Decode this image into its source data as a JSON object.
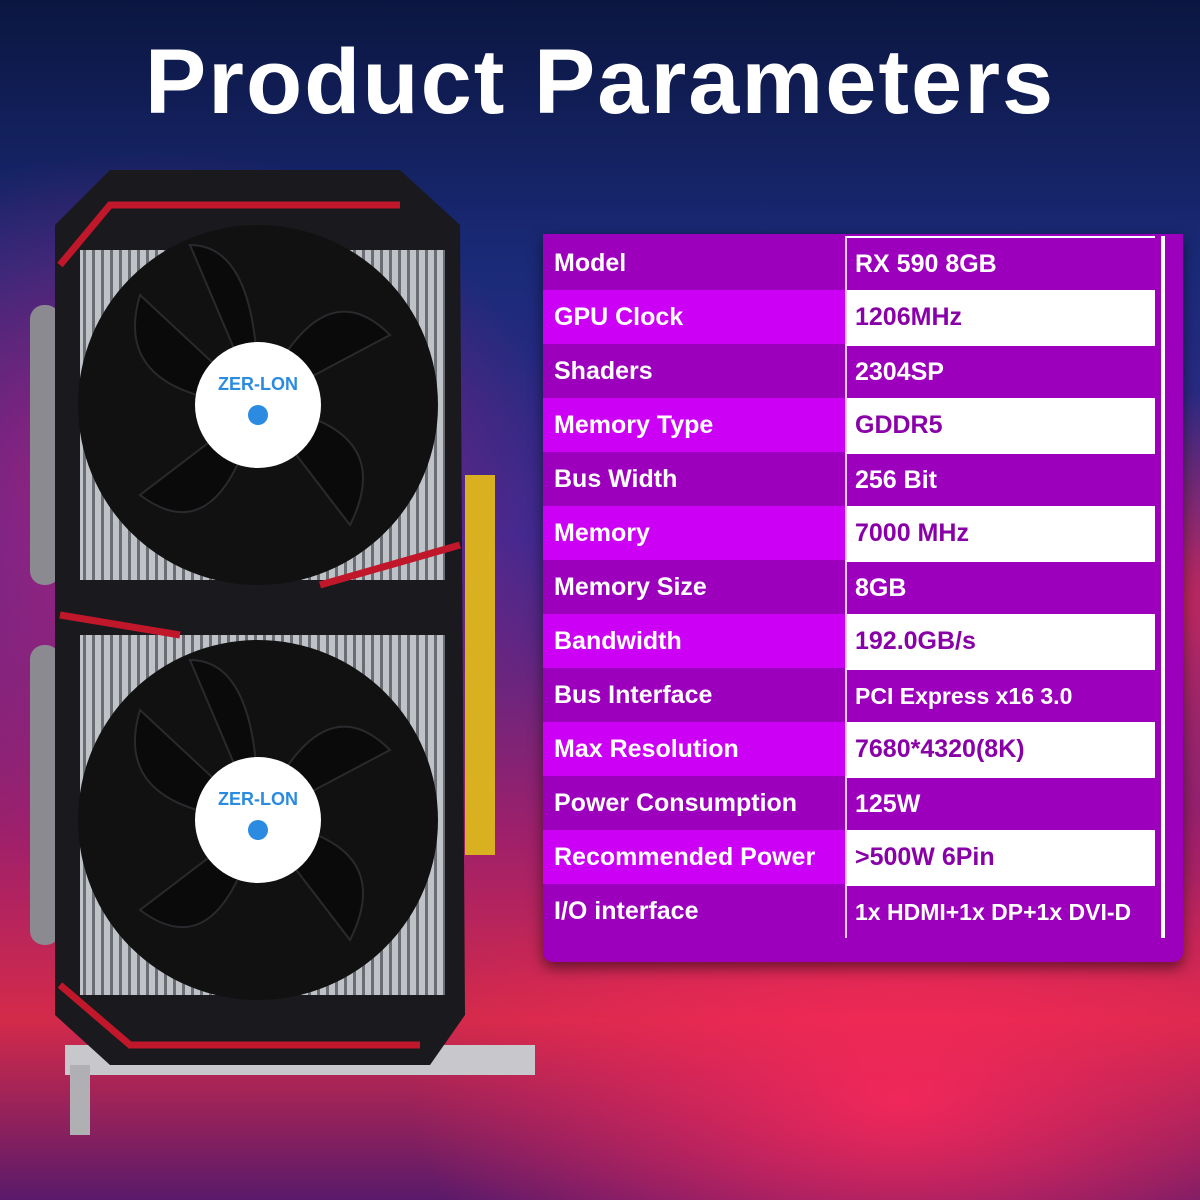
{
  "title": "Product Parameters",
  "product": {
    "brand_logo": "ZER-LON"
  },
  "colors": {
    "row_dark": "#9c00bc",
    "row_light": "#cc00f5",
    "value_text": "#8a00a8"
  },
  "specs": [
    {
      "label": "Model",
      "value": "RX 590 8GB"
    },
    {
      "label": "GPU Clock",
      "value": "1206MHz"
    },
    {
      "label": "Shaders",
      "value": "2304SP"
    },
    {
      "label": "Memory Type",
      "value": "GDDR5"
    },
    {
      "label": "Bus Width",
      "value": "256 Bit"
    },
    {
      "label": "Memory",
      "value": "7000 MHz"
    },
    {
      "label": "Memory Size",
      "value": "8GB"
    },
    {
      "label": "Bandwidth",
      "value": "192.0GB/s"
    },
    {
      "label": "Bus Interface",
      "value": "PCI Express x16 3.0"
    },
    {
      "label": "Max Resolution",
      "value": "7680*4320(8K)"
    },
    {
      "label": "Power Consumption",
      "value": "125W"
    },
    {
      "label": "Recommended Power",
      "value": ">500W 6Pin"
    },
    {
      "label": "I/O interface",
      "value": "1x HDMI+1x DP+1x DVI-D"
    }
  ]
}
